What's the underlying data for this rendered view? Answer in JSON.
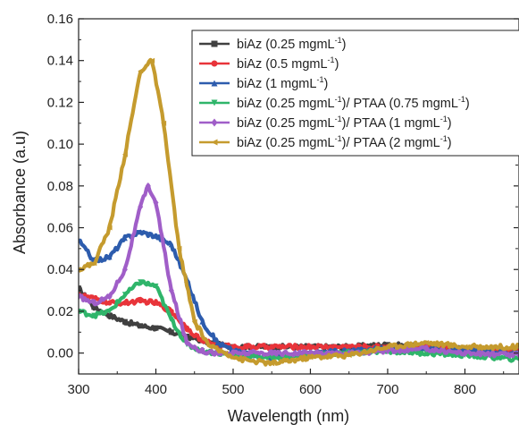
{
  "chart_data": {
    "type": "line",
    "xlabel": "Wavelength (nm)",
    "ylabel": "Absorbance (a.u)",
    "xlim": [
      300,
      870
    ],
    "ylim": [
      -0.01,
      0.16
    ],
    "xticks": [
      300,
      400,
      500,
      600,
      700,
      800
    ],
    "yticks": [
      0.0,
      0.02,
      0.04,
      0.06,
      0.08,
      0.1,
      0.12,
      0.14,
      0.16
    ],
    "xtick_labels": [
      "300",
      "400",
      "500",
      "600",
      "700",
      "800"
    ],
    "ytick_labels": [
      "0.00",
      "0.02",
      "0.04",
      "0.06",
      "0.08",
      "0.10",
      "0.12",
      "0.14",
      "0.16"
    ],
    "grid": false,
    "legend_position": "top-right",
    "series": [
      {
        "name": "biAz (0.25 mgmL-1)",
        "label_main": "biAz (0.25 mgmL",
        "label_sup": "-1",
        "label_tail": ")",
        "color": "#404040",
        "marker": "square",
        "x": [
          300,
          320,
          340,
          360,
          380,
          400,
          420,
          440,
          460,
          480,
          500,
          550,
          600,
          650,
          700,
          750,
          800,
          870
        ],
        "y": [
          0.031,
          0.022,
          0.018,
          0.015,
          0.013,
          0.012,
          0.01,
          0.008,
          0.006,
          0.004,
          0.003,
          0.003,
          0.003,
          0.003,
          0.004,
          0.003,
          0.002,
          0.001
        ]
      },
      {
        "name": "biAz (0.5 mgmL-1)",
        "label_main": "biAz (0.5 mgmL",
        "label_sup": "-1",
        "label_tail": ")",
        "color": "#e8343a",
        "marker": "circle",
        "x": [
          300,
          320,
          340,
          360,
          380,
          400,
          420,
          440,
          460,
          480,
          500,
          550,
          600,
          650,
          700,
          750,
          800,
          870
        ],
        "y": [
          0.028,
          0.026,
          0.024,
          0.024,
          0.025,
          0.024,
          0.02,
          0.012,
          0.006,
          0.004,
          0.003,
          0.003,
          0.003,
          0.003,
          0.003,
          0.003,
          0.002,
          0.001
        ]
      },
      {
        "name": "biAz (1 mgmL-1)",
        "label_main": "biAz (1 mgmL",
        "label_sup": "-1",
        "label_tail": ")",
        "color": "#2d5cad",
        "marker": "triangle",
        "x": [
          300,
          320,
          340,
          360,
          380,
          400,
          420,
          440,
          460,
          480,
          500,
          550,
          600,
          650,
          700,
          750,
          800,
          870
        ],
        "y": [
          0.054,
          0.044,
          0.046,
          0.055,
          0.058,
          0.056,
          0.052,
          0.035,
          0.015,
          0.005,
          0.001,
          -0.002,
          0.0,
          0.001,
          0.002,
          0.002,
          0.001,
          0.0
        ]
      },
      {
        "name": "biAz (0.25 mgmL-1)/ PTAA (0.75 mgmL-1)",
        "label_main": "biAz (0.25 mgmL",
        "label_sup": "-1",
        "label_tail": ")/ PTAA (0.75 mgmL",
        "label_sup2": "-1",
        "label_tail2": ")",
        "color": "#2fb56a",
        "marker": "triangle-down",
        "x": [
          300,
          320,
          340,
          360,
          380,
          400,
          420,
          440,
          460,
          480,
          500,
          550,
          600,
          650,
          700,
          750,
          800,
          870
        ],
        "y": [
          0.02,
          0.018,
          0.02,
          0.028,
          0.034,
          0.032,
          0.016,
          0.004,
          0.001,
          0.0,
          -0.001,
          -0.002,
          -0.001,
          0.0,
          0.001,
          0.0,
          -0.001,
          -0.003
        ]
      },
      {
        "name": "biAz (0.25 mgmL-1)/ PTAA (1 mgmL-1)",
        "label_main": "biAz (0.25 mgmL",
        "label_sup": "-1",
        "label_tail": ")/ PTAA (1 mgmL",
        "label_sup2": "-1",
        "label_tail2": ")",
        "color": "#a05ec8",
        "marker": "diamond",
        "x": [
          300,
          320,
          340,
          360,
          380,
          390,
          400,
          420,
          440,
          460,
          480,
          500,
          550,
          600,
          650,
          700,
          750,
          800,
          870
        ],
        "y": [
          0.027,
          0.024,
          0.027,
          0.04,
          0.07,
          0.08,
          0.072,
          0.03,
          0.005,
          0.001,
          0.0,
          0.0,
          0.0,
          0.0,
          0.0,
          0.001,
          0.002,
          0.0,
          -0.001
        ]
      },
      {
        "name": "biAz (0.25 mgmL-1)/ PTAA (2 mgmL-1)",
        "label_main": "biAz (0.25 mgmL",
        "label_sup": "-1",
        "label_tail": ")/ PTAA (2 mgmL",
        "label_sup2": "-1",
        "label_tail2": ")",
        "color": "#c59b2e",
        "marker": "triangle-left",
        "x": [
          300,
          320,
          340,
          360,
          380,
          395,
          410,
          430,
          450,
          470,
          490,
          510,
          550,
          600,
          650,
          700,
          750,
          800,
          870
        ],
        "y": [
          0.04,
          0.043,
          0.06,
          0.095,
          0.135,
          0.14,
          0.11,
          0.05,
          0.015,
          0.003,
          0.0,
          -0.003,
          -0.005,
          -0.002,
          -0.001,
          0.003,
          0.005,
          0.003,
          0.003
        ]
      }
    ]
  }
}
